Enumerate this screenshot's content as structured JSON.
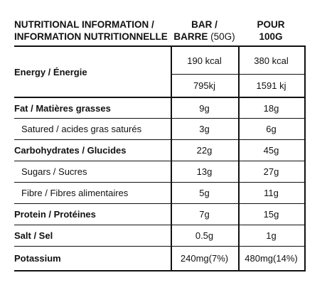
{
  "header": {
    "title_line1": "NUTRITIONAL INFORMATION /",
    "title_line2": "INFORMATION NUTRITIONNELLE",
    "bar_line1": "BAR /",
    "bar_line2": "BARRE",
    "bar_unit": "(50G)",
    "pour_line1": "POUR",
    "pour_line2": "100G"
  },
  "rows": {
    "energy": {
      "label": "Energy / Énergie",
      "bar_kcal": "190 kcal",
      "pour_kcal": "380 kcal",
      "bar_kj": "795kj",
      "pour_kj": "1591 kj"
    },
    "fat": {
      "label": "Fat / Matières grasses",
      "bar": "9g",
      "pour": "18g"
    },
    "saturated": {
      "label": "Satured / acides gras saturés",
      "bar": "3g",
      "pour": "6g"
    },
    "carbs": {
      "label": "Carbohydrates / Glucides",
      "bar": "22g",
      "pour": "45g"
    },
    "sugars": {
      "label": "Sugars / Sucres",
      "bar": "13g",
      "pour": "27g"
    },
    "fibre": {
      "label": "Fibre / Fibres alimentaires",
      "bar": "5g",
      "pour": "11g"
    },
    "protein": {
      "label": "Protein / Protéines",
      "bar": "7g",
      "pour": "15g"
    },
    "salt": {
      "label": "Salt / Sel",
      "bar": "0.5g",
      "pour": "1g"
    },
    "potassium": {
      "label": "Potassium",
      "bar": "240mg(7%)",
      "pour": "480mg(14%)"
    }
  }
}
